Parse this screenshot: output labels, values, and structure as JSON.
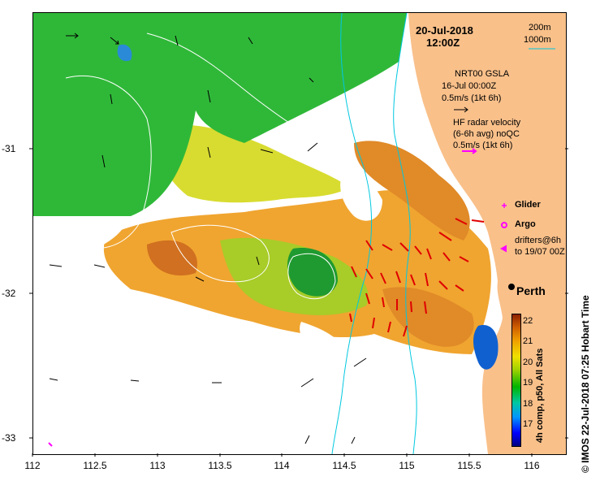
{
  "title": {
    "date": "20-Jul-2018",
    "time": "12:00Z"
  },
  "depth_legend": {
    "line1": "200m",
    "line2": "1000m"
  },
  "gsla": {
    "name": "NRT00 GSLA",
    "date": "16-Jul 00:00Z",
    "scale": "0.5m/s (1kt 6h)"
  },
  "radar": {
    "title": "HF radar velocity",
    "subtitle": "(6-6h avg) noQC",
    "scale": "0.5m/s (1kt 6h)"
  },
  "legend": {
    "glider": "Glider",
    "argo": "Argo",
    "drifters": "drifters@6h",
    "drifters_to": "to 19/07 00Z"
  },
  "city": "Perth",
  "axes": {
    "x_ticks": [
      "112",
      "112.5",
      "113",
      "113.5",
      "114",
      "114.5",
      "115",
      "115.5",
      "116"
    ],
    "y_ticks": [
      "-31",
      "-32",
      "-33"
    ]
  },
  "colorbar": {
    "ticks": [
      "22",
      "21",
      "20",
      "19",
      "18",
      "17"
    ],
    "caption": "4h comp, p50, All Sats"
  },
  "credit": "© IMOS 22-Jul-2018 07:25 Hobart Time",
  "colors": {
    "land": "#f9c08a",
    "current_arrow": "#e00000",
    "legend_magenta": "#ff00ff",
    "isobath": "#00c8e0"
  }
}
